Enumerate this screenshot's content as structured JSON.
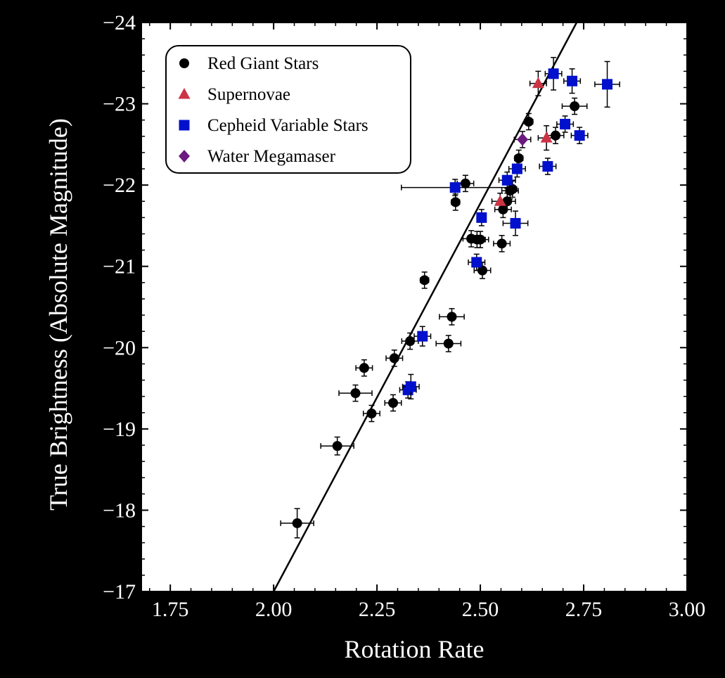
{
  "chart_data": {
    "type": "scatter",
    "xlabel": "Rotation Rate",
    "ylabel": "True Brightness (Absolute Magnitude)",
    "xlim": [
      1.68,
      3.0
    ],
    "ylim": [
      -17,
      -24
    ],
    "y_inverted": true,
    "x_ticks": [
      {
        "v": 1.75,
        "label": "1.75"
      },
      {
        "v": 2.0,
        "label": "2.00"
      },
      {
        "v": 2.25,
        "label": "2.25"
      },
      {
        "v": 2.5,
        "label": "2.50"
      },
      {
        "v": 2.75,
        "label": "2.75"
      },
      {
        "v": 3.0,
        "label": "3.00"
      }
    ],
    "y_ticks": [
      {
        "v": -17,
        "label": "−17"
      },
      {
        "v": -18,
        "label": "−18"
      },
      {
        "v": -19,
        "label": "−19"
      },
      {
        "v": -20,
        "label": "−20"
      },
      {
        "v": -21,
        "label": "−21"
      },
      {
        "v": -22,
        "label": "−22"
      },
      {
        "v": -23,
        "label": "−23"
      },
      {
        "v": -24,
        "label": "−24"
      }
    ],
    "grid": false,
    "legend_position": "top-left",
    "fit_line": {
      "x": [
        2.0,
        2.733
      ],
      "y": [
        -17.0,
        -24.0
      ]
    },
    "series": [
      {
        "name": "Red Giant Stars",
        "marker": "circle",
        "color": "#000000",
        "points": [
          [
            2.057,
            -17.84,
            0.04,
            0.18
          ],
          [
            2.154,
            -18.79,
            0.04,
            0.11
          ],
          [
            2.198,
            -19.44,
            0.04,
            0.1
          ],
          [
            2.219,
            -19.75,
            0.02,
            0.1
          ],
          [
            2.237,
            -19.19,
            0.02,
            0.1
          ],
          [
            2.289,
            -19.32,
            0.02,
            0.1
          ],
          [
            2.292,
            -19.87,
            0.02,
            0.1
          ],
          [
            2.33,
            -20.08,
            0.02,
            0.1
          ],
          [
            2.365,
            -20.83,
            0.01,
            0.1
          ],
          [
            2.423,
            -20.05,
            0.03,
            0.1
          ],
          [
            2.431,
            -20.38,
            0.03,
            0.1
          ],
          [
            2.44,
            -21.79,
            0.01,
            0.1
          ],
          [
            2.464,
            -22.02,
            0.02,
            0.1
          ],
          [
            2.478,
            -21.34,
            0.02,
            0.1
          ],
          [
            2.492,
            -21.33,
            0.02,
            0.1
          ],
          [
            2.5,
            -21.33,
            0.02,
            0.1
          ],
          [
            2.505,
            -20.95,
            0.02,
            0.1
          ],
          [
            2.552,
            -21.28,
            0.02,
            0.1
          ],
          [
            2.555,
            -21.7,
            0.02,
            0.1
          ],
          [
            2.565,
            -21.8,
            0.02,
            0.1
          ],
          [
            2.572,
            -21.93,
            0.02,
            0.1
          ],
          [
            2.578,
            -21.95,
            0.01,
            0.1
          ],
          [
            2.593,
            -22.33,
            0.01,
            0.1
          ],
          [
            2.617,
            -22.78,
            0.01,
            0.1
          ],
          [
            2.682,
            -22.61,
            0.02,
            0.1
          ],
          [
            2.728,
            -22.97,
            0.03,
            0.1
          ]
        ]
      },
      {
        "name": "Supernovae",
        "marker": "triangle",
        "color": "#cc3344",
        "points": [
          [
            2.548,
            -21.8,
            0.02,
            0.1
          ],
          [
            2.64,
            -23.25,
            0.02,
            0.15
          ],
          [
            2.66,
            -22.58,
            0.02,
            0.15
          ]
        ]
      },
      {
        "name": "Cepheid Variable Stars",
        "marker": "square",
        "color": "#0010cc",
        "points": [
          [
            2.325,
            -19.48,
            0.02,
            0.1
          ],
          [
            2.332,
            -19.52,
            0.02,
            0.15
          ],
          [
            2.36,
            -20.14,
            0.02,
            0.12
          ],
          [
            2.439,
            -21.97,
            0.13,
            0.1
          ],
          [
            2.491,
            -21.05,
            0.02,
            0.1
          ],
          [
            2.503,
            -21.6,
            0.01,
            0.1
          ],
          [
            2.565,
            -22.06,
            0.02,
            0.1
          ],
          [
            2.585,
            -21.53,
            0.03,
            0.15
          ],
          [
            2.589,
            -22.2,
            0.02,
            0.1
          ],
          [
            2.663,
            -22.23,
            0.02,
            0.1
          ],
          [
            2.677,
            -23.37,
            0.02,
            0.2
          ],
          [
            2.705,
            -22.75,
            0.02,
            0.1
          ],
          [
            2.722,
            -23.28,
            0.02,
            0.15
          ],
          [
            2.74,
            -22.61,
            0.02,
            0.1
          ],
          [
            2.807,
            -23.24,
            0.03,
            0.28
          ]
        ]
      },
      {
        "name": "Water Megamaser",
        "marker": "diamond",
        "color": "#6b1a80",
        "points": [
          [
            2.602,
            -22.56,
            0.02,
            0.1
          ]
        ]
      }
    ]
  }
}
